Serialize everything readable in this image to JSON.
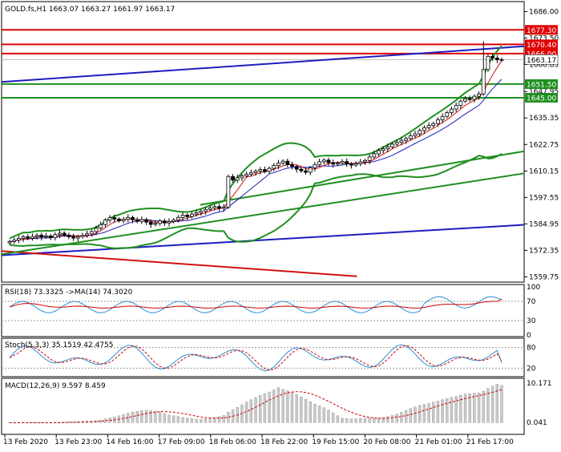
{
  "header": {
    "symbol_ohlc": "GOLD.fs,H1  1663.07 1663.27 1661.97 1663.17"
  },
  "chart_data": [
    {
      "type": "candlestick",
      "name": "price",
      "y_ticks": [
        1686.0,
        1673.5,
        1660.85,
        1647.95,
        1635.35,
        1622.75,
        1610.15,
        1597.55,
        1584.95,
        1572.35,
        1559.75
      ],
      "y_tick_labels": [
        "1686.00",
        "1673.50",
        "1660.85",
        "1647.95",
        "1635.35",
        "1622.75",
        "1610.15",
        "1597.55",
        "1584.95",
        "1572.35",
        "1559.75"
      ],
      "ylim": [
        1558,
        1690
      ],
      "levels": [
        {
          "label": "1677.30",
          "value": 1677.3,
          "color": "#e00000"
        },
        {
          "label": "1670.40",
          "value": 1670.4,
          "color": "#e00000"
        },
        {
          "label": "1666.00",
          "value": 1666.0,
          "color": "#e00000"
        },
        {
          "label": "1663.17",
          "value": 1663.17,
          "color": "#bbbbbb"
        },
        {
          "label": "1651.50",
          "value": 1651.5,
          "color": "#1f8f1f"
        },
        {
          "label": "1645.00",
          "value": 1645.0,
          "color": "#1f8f1f"
        }
      ],
      "trendlines": [
        {
          "color": "#1d1dbf",
          "points": [
            [
              0,
              1652.5
            ],
            [
              1,
              1669.5
            ]
          ]
        },
        {
          "color": "#1d1dbf",
          "points": [
            [
              0,
              1570.0
            ],
            [
              1,
              1584.5
            ]
          ]
        },
        {
          "color": "#d01010",
          "points": [
            [
              0,
              1572.0
            ],
            [
              0.68,
              1560.0
            ]
          ]
        },
        {
          "color": "#1f8f1f",
          "points": [
            [
              0,
              1570.5
            ],
            [
              1,
              1609.0
            ]
          ]
        },
        {
          "color": "#1f8f1f",
          "points": [
            [
              0.38,
              1594.0
            ],
            [
              1,
              1619.5
            ]
          ]
        }
      ],
      "series_close": [
        1576.5,
        1577.2,
        1578.0,
        1578.8,
        1578.1,
        1578.9,
        1579.6,
        1578.7,
        1579.2,
        1578.4,
        1579.8,
        1580.5,
        1579.6,
        1578.8,
        1578.2,
        1578.9,
        1579.5,
        1580.2,
        1581.3,
        1582.9,
        1584.6,
        1586.8,
        1587.9,
        1587.2,
        1586.4,
        1587.1,
        1588.0,
        1586.9,
        1586.1,
        1587.0,
        1585.8,
        1584.7,
        1585.2,
        1586.3,
        1585.4,
        1586.1,
        1586.8,
        1588.0,
        1589.1,
        1588.4,
        1589.6,
        1590.3,
        1591.0,
        1591.8,
        1592.5,
        1593.2,
        1592.4,
        1592.9,
        1607.5,
        1605.8,
        1606.9,
        1607.8,
        1608.6,
        1609.3,
        1610.1,
        1610.8,
        1609.9,
        1611.4,
        1612.7,
        1613.9,
        1614.8,
        1613.1,
        1612.3,
        1611.0,
        1610.2,
        1609.5,
        1611.6,
        1613.2,
        1614.5,
        1615.3,
        1614.1,
        1613.4,
        1613.9,
        1614.6,
        1613.5,
        1612.9,
        1613.6,
        1614.4,
        1615.1,
        1616.8,
        1618.3,
        1619.9,
        1620.7,
        1621.6,
        1622.9,
        1623.8,
        1624.7,
        1625.6,
        1626.9,
        1627.8,
        1629.4,
        1630.7,
        1631.8,
        1632.7,
        1634.5,
        1636.1,
        1637.9,
        1639.6,
        1641.3,
        1643.4,
        1644.5,
        1644.2,
        1645.7,
        1646.8,
        1658.4,
        1664.7,
        1663.9,
        1663.1,
        1663.2
      ],
      "ma_fast_color": "#d01010",
      "ma_slow_color": "#1d1dbf",
      "bands_color": "#1f8f1f"
    },
    {
      "type": "line",
      "name": "rsi",
      "label": "RSI(18) 73.3325  ->MA(14) 74.3020",
      "y_tick_labels": [
        "100",
        "70",
        "30",
        "0"
      ],
      "y_ticks": [
        100,
        70,
        30,
        0
      ],
      "ylim": [
        0,
        100
      ],
      "levels": [
        70,
        30
      ],
      "last_value": 73.3325,
      "ma_last_value": 74.302
    },
    {
      "type": "line",
      "name": "stochastic",
      "label": "Stoch(5,3,3) 35.1519 42.4755",
      "y_tick_labels": [
        "80",
        "20"
      ],
      "y_ticks": [
        80,
        20
      ],
      "ylim": [
        0,
        100
      ],
      "levels": [
        80,
        20
      ],
      "last_main": 35.1519,
      "last_signal": 42.4755
    },
    {
      "type": "bar",
      "name": "macd",
      "label": "MACD(12,26,9) 9.597 8.459",
      "y_tick_labels": [
        "10.171",
        "0.041"
      ],
      "y_ticks": [
        10.171,
        0.041
      ],
      "ylim": [
        -2.6,
        10.8
      ],
      "last_main": 9.597,
      "last_signal": 8.459
    }
  ],
  "x_axis": {
    "labels": [
      "13 Feb 2020",
      "13 Feb 23:00",
      "14 Feb 16:00",
      "17 Feb 09:00",
      "18 Feb 06:00",
      "18 Feb 22:00",
      "19 Feb 15:00",
      "20 Feb 08:00",
      "21 Feb 01:00",
      "21 Feb 17:00"
    ]
  }
}
